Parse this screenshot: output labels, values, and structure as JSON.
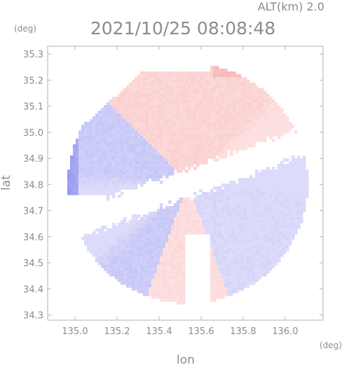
{
  "chart_data": {
    "type": "heatmap",
    "title": "2021/10/25 08:08:48",
    "subtitle": "ALT(km) 2.0",
    "xlabel": "lon",
    "ylabel": "lat",
    "x_unit": "(deg)",
    "y_unit": "(deg)",
    "xlim": [
      134.87,
      136.18
    ],
    "ylim": [
      34.28,
      35.33
    ],
    "x_ticks": [
      135.0,
      135.2,
      135.4,
      135.6,
      135.8,
      136.0
    ],
    "x_tick_labels": [
      "135.0",
      "135.2",
      "135.4",
      "135.6",
      "135.8",
      "136.0"
    ],
    "y_ticks": [
      34.3,
      34.4,
      34.5,
      34.6,
      34.7,
      34.8,
      34.9,
      35.0,
      35.1,
      35.2,
      35.3
    ],
    "y_tick_labels": [
      "34.3",
      "34.4",
      "34.5",
      "34.6",
      "34.7",
      "34.8",
      "34.9",
      "35.0",
      "35.1",
      "35.2",
      "35.3"
    ],
    "colors": {
      "negative_strong": "#6b6ee8",
      "negative_weak": "#dcdcfa",
      "positive_weak": "#fde0e0",
      "positive_strong": "#f08a8a",
      "label": "#8c8c8c"
    },
    "radar_center": [
      135.53,
      34.81
    ],
    "coverage_radius_deg": 0.57,
    "regions": [
      {
        "name": "northwest-approaching",
        "sign": "negative",
        "level": 0.35
      },
      {
        "name": "northeast-receding",
        "sign": "positive",
        "level": 0.3
      },
      {
        "name": "southwest-approaching",
        "sign": "negative",
        "level": 0.3
      },
      {
        "name": "southeast-approaching",
        "sign": "negative",
        "level": 0.28
      },
      {
        "name": "south-receding",
        "sign": "positive",
        "level": 0.25
      }
    ]
  }
}
